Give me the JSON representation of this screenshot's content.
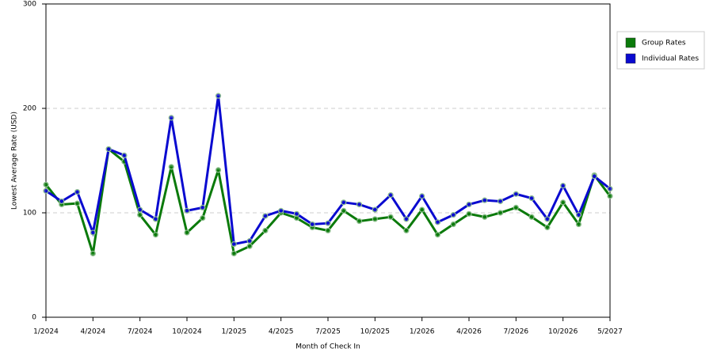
{
  "chart_data": {
    "type": "line",
    "x_label": "Month of Check In",
    "y_label": "Lowest Average Rate (USD)",
    "categories": [
      "1/2024",
      null,
      null,
      "4/2024",
      null,
      null,
      "7/2024",
      null,
      null,
      "10/2024",
      null,
      null,
      "1/2025",
      null,
      null,
      "4/2025",
      null,
      null,
      "7/2025",
      null,
      null,
      "10/2025",
      null,
      null,
      "1/2026",
      null,
      null,
      "4/2026",
      null,
      null,
      "7/2026",
      null,
      null,
      "10/2026",
      null,
      null,
      "5/2027"
    ],
    "series": [
      {
        "name": "Group Rates",
        "color": "#0b7a0b",
        "values": [
          127,
          108,
          109,
          61,
          161,
          149,
          98,
          79,
          144,
          81,
          95,
          141,
          61,
          68,
          83,
          100,
          95,
          86,
          83,
          102,
          92,
          94,
          96,
          83,
          103,
          79,
          89,
          99,
          96,
          100,
          105,
          96,
          86,
          110,
          89,
          136,
          116
        ]
      },
      {
        "name": "Individual Rates",
        "color": "#0a0ad0",
        "values": [
          121,
          111,
          120,
          81,
          161,
          155,
          103,
          94,
          191,
          102,
          105,
          212,
          70,
          73,
          97,
          102,
          99,
          89,
          90,
          110,
          108,
          103,
          117,
          94,
          116,
          91,
          98,
          108,
          112,
          111,
          118,
          114,
          94,
          126,
          98,
          135,
          123
        ]
      }
    ],
    "ylim": [
      0,
      300
    ],
    "yticks": [
      0,
      100,
      200,
      300
    ],
    "grid": true,
    "legend": "right"
  }
}
